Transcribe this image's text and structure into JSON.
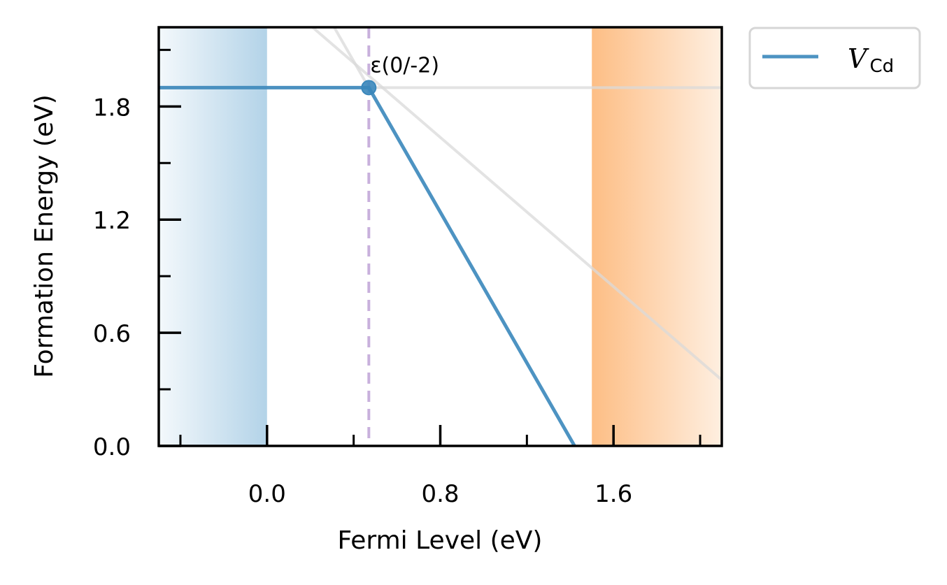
{
  "chart_data": {
    "type": "line",
    "xlabel": "Fermi Level (eV)",
    "ylabel": "Formation Energy (eV)",
    "xlim": [
      -0.5,
      2.1
    ],
    "ylim": [
      0.0,
      2.22
    ],
    "x_ticks": [
      0.0,
      0.8,
      1.6
    ],
    "x_tick_labels": [
      "0.0",
      "0.8",
      "1.6"
    ],
    "y_ticks": [
      0.0,
      0.6,
      1.2,
      1.8
    ],
    "y_tick_labels": [
      "0.0",
      "0.6",
      "1.2",
      "1.8"
    ],
    "valence_band_max": 0.0,
    "conduction_band_min": 1.5,
    "colors": {
      "series": "#3a87bb",
      "inactive": "#d9d9d9",
      "vbm_shade": "#b3d3e8",
      "cbm_shade": "#fdbe85",
      "transition": "#c8b0dc"
    },
    "series": [
      {
        "name": "V_Cd",
        "legend_main": "V",
        "legend_sub": "Cd",
        "lowest_energy": [
          {
            "x": -0.5,
            "y": 1.9
          },
          {
            "x": 0.47,
            "y": 1.9
          },
          {
            "x": 1.42,
            "y": 0.0
          }
        ]
      }
    ],
    "inactive_lines": [
      {
        "charge": 0,
        "points": [
          {
            "x": -0.5,
            "y": 1.9
          },
          {
            "x": 2.1,
            "y": 1.9
          }
        ]
      },
      {
        "charge": -1,
        "points": [
          {
            "x": 0.21,
            "y": 2.22
          },
          {
            "x": 2.1,
            "y": 0.35
          }
        ]
      },
      {
        "charge": -2,
        "points": [
          {
            "x": 0.31,
            "y": 2.22
          },
          {
            "x": 0.47,
            "y": 1.9
          }
        ]
      }
    ],
    "transition_levels": [
      {
        "label": "ε(0/-2)",
        "x": 0.47,
        "y": 1.9
      }
    ],
    "legend_position": "outside-top-right"
  }
}
